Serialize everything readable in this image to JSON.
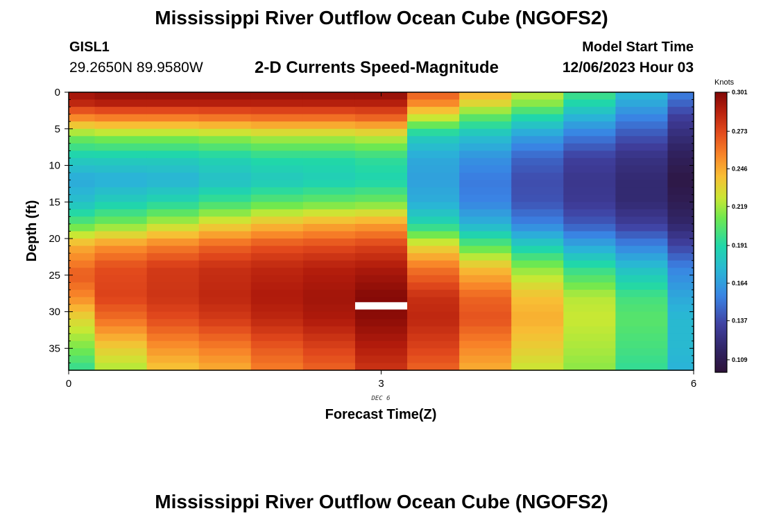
{
  "header": {
    "title": "Mississippi River Outflow Ocean Cube (NGOFS2)",
    "station_id": "GISL1",
    "station_coords": "29.2650N  89.9580W",
    "subtitle": "2-D Currents Speed-Magnitude",
    "model_start_label": "Model Start Time",
    "model_start_value": "12/06/2023 Hour 03"
  },
  "footer": {
    "title": "Mississippi River Outflow Ocean Cube (NGOFS2)"
  },
  "chart_data": {
    "type": "heatmap",
    "xlabel": "Forecast Time(Z)",
    "ylabel": "Depth (ft)",
    "x_date_label": "DEC 6",
    "xlim": [
      0,
      6
    ],
    "ylim": [
      0,
      38
    ],
    "y_inverted": true,
    "x_ticks": [
      0,
      3,
      6
    ],
    "y_ticks": [
      0,
      5,
      10,
      15,
      20,
      25,
      30,
      35
    ],
    "colorbar": {
      "unit": "Knots",
      "range": [
        0.1,
        0.301
      ],
      "tick_values": [
        0.301,
        0.273,
        0.246,
        0.219,
        0.191,
        0.164,
        0.137,
        0.109
      ],
      "tick_labels": [
        "0.301",
        "0.273",
        "0.246",
        "0.219",
        "0.191",
        "0.164",
        "0.137",
        "0.109"
      ]
    },
    "columns": [
      {
        "x0": 0.0,
        "x1": 0.25,
        "profile": [
          [
            0,
            0.295
          ],
          [
            1.5,
            0.285
          ],
          [
            3.5,
            0.255
          ],
          [
            6,
            0.212
          ],
          [
            9,
            0.185
          ],
          [
            12,
            0.168
          ],
          [
            15,
            0.178
          ],
          [
            18,
            0.205
          ],
          [
            21,
            0.245
          ],
          [
            25,
            0.268
          ],
          [
            28,
            0.255
          ],
          [
            31,
            0.232
          ],
          [
            35,
            0.212
          ],
          [
            38,
            0.195
          ]
        ]
      },
      {
        "x0": 0.25,
        "x1": 0.75,
        "profile": [
          [
            0,
            0.298
          ],
          [
            1.5,
            0.288
          ],
          [
            3.5,
            0.258
          ],
          [
            6,
            0.215
          ],
          [
            9,
            0.185
          ],
          [
            12,
            0.17
          ],
          [
            15,
            0.185
          ],
          [
            18,
            0.212
          ],
          [
            21,
            0.252
          ],
          [
            24,
            0.272
          ],
          [
            28,
            0.275
          ],
          [
            31,
            0.262
          ],
          [
            35,
            0.235
          ],
          [
            38,
            0.22
          ]
        ]
      },
      {
        "x0": 0.75,
        "x1": 1.25,
        "profile": [
          [
            0,
            0.298
          ],
          [
            1.5,
            0.288
          ],
          [
            3.5,
            0.258
          ],
          [
            6,
            0.215
          ],
          [
            9,
            0.185
          ],
          [
            12,
            0.172
          ],
          [
            15,
            0.19
          ],
          [
            18,
            0.222
          ],
          [
            21,
            0.258
          ],
          [
            24,
            0.278
          ],
          [
            28,
            0.28
          ],
          [
            31,
            0.272
          ],
          [
            35,
            0.252
          ],
          [
            38,
            0.238
          ]
        ]
      },
      {
        "x0": 1.25,
        "x1": 1.75,
        "profile": [
          [
            0,
            0.298
          ],
          [
            1.5,
            0.288
          ],
          [
            3.5,
            0.26
          ],
          [
            6,
            0.218
          ],
          [
            9,
            0.188
          ],
          [
            12,
            0.178
          ],
          [
            15,
            0.198
          ],
          [
            18,
            0.232
          ],
          [
            21,
            0.265
          ],
          [
            24,
            0.282
          ],
          [
            28,
            0.285
          ],
          [
            31,
            0.278
          ],
          [
            35,
            0.258
          ],
          [
            38,
            0.245
          ]
        ]
      },
      {
        "x0": 1.75,
        "x1": 2.25,
        "profile": [
          [
            0,
            0.298
          ],
          [
            1.5,
            0.288
          ],
          [
            3.5,
            0.262
          ],
          [
            6,
            0.222
          ],
          [
            9,
            0.192
          ],
          [
            12,
            0.182
          ],
          [
            15,
            0.205
          ],
          [
            18,
            0.24
          ],
          [
            21,
            0.27
          ],
          [
            24,
            0.285
          ],
          [
            28,
            0.29
          ],
          [
            31,
            0.285
          ],
          [
            35,
            0.268
          ],
          [
            38,
            0.258
          ]
        ]
      },
      {
        "x0": 2.25,
        "x1": 2.75,
        "profile": [
          [
            0,
            0.298
          ],
          [
            1.5,
            0.288
          ],
          [
            3.5,
            0.262
          ],
          [
            6,
            0.222
          ],
          [
            9,
            0.192
          ],
          [
            12,
            0.185
          ],
          [
            15,
            0.208
          ],
          [
            18,
            0.245
          ],
          [
            21,
            0.272
          ],
          [
            24,
            0.288
          ],
          [
            28,
            0.293
          ],
          [
            31,
            0.29
          ],
          [
            35,
            0.275
          ],
          [
            38,
            0.265
          ]
        ]
      },
      {
        "x0": 2.75,
        "x1": 3.25,
        "profile": [
          [
            0,
            0.298
          ],
          [
            1.5,
            0.288
          ],
          [
            3.5,
            0.265
          ],
          [
            6,
            0.225
          ],
          [
            9,
            0.195
          ],
          [
            12,
            0.188
          ],
          [
            15,
            0.21
          ],
          [
            18,
            0.248
          ],
          [
            21,
            0.275
          ],
          [
            24,
            0.29
          ],
          [
            28,
            0.3
          ],
          [
            31,
            0.298
          ],
          [
            35,
            0.288
          ],
          [
            38,
            0.28
          ]
        ]
      },
      {
        "x0": 3.25,
        "x1": 3.75,
        "profile": [
          [
            0,
            0.268
          ],
          [
            1.5,
            0.255
          ],
          [
            3.5,
            0.225
          ],
          [
            6,
            0.185
          ],
          [
            9,
            0.168
          ],
          [
            12,
            0.165
          ],
          [
            15,
            0.17
          ],
          [
            18,
            0.19
          ],
          [
            21,
            0.232
          ],
          [
            24,
            0.26
          ],
          [
            28,
            0.282
          ],
          [
            31,
            0.285
          ],
          [
            35,
            0.275
          ],
          [
            38,
            0.265
          ]
        ]
      },
      {
        "x0": 3.75,
        "x1": 4.25,
        "profile": [
          [
            0,
            0.245
          ],
          [
            1.5,
            0.232
          ],
          [
            3.5,
            0.205
          ],
          [
            6,
            0.178
          ],
          [
            9,
            0.16
          ],
          [
            12,
            0.152
          ],
          [
            15,
            0.155
          ],
          [
            18,
            0.172
          ],
          [
            21,
            0.205
          ],
          [
            24,
            0.24
          ],
          [
            28,
            0.265
          ],
          [
            31,
            0.27
          ],
          [
            35,
            0.255
          ],
          [
            38,
            0.245
          ]
        ]
      },
      {
        "x0": 4.25,
        "x1": 4.75,
        "profile": [
          [
            0,
            0.225
          ],
          [
            1.5,
            0.215
          ],
          [
            3.5,
            0.19
          ],
          [
            6,
            0.165
          ],
          [
            9,
            0.145
          ],
          [
            12,
            0.138
          ],
          [
            15,
            0.14
          ],
          [
            18,
            0.155
          ],
          [
            21,
            0.185
          ],
          [
            24,
            0.215
          ],
          [
            28,
            0.24
          ],
          [
            31,
            0.245
          ],
          [
            35,
            0.235
          ],
          [
            38,
            0.225
          ]
        ]
      },
      {
        "x0": 4.75,
        "x1": 5.25,
        "profile": [
          [
            0,
            0.2
          ],
          [
            1.5,
            0.19
          ],
          [
            3.5,
            0.172
          ],
          [
            6,
            0.152
          ],
          [
            9,
            0.133
          ],
          [
            12,
            0.128
          ],
          [
            15,
            0.13
          ],
          [
            18,
            0.142
          ],
          [
            21,
            0.168
          ],
          [
            24,
            0.195
          ],
          [
            28,
            0.222
          ],
          [
            31,
            0.225
          ],
          [
            35,
            0.22
          ],
          [
            38,
            0.215
          ]
        ]
      },
      {
        "x0": 5.25,
        "x1": 5.75,
        "profile": [
          [
            0,
            0.175
          ],
          [
            1.5,
            0.168
          ],
          [
            3.5,
            0.155
          ],
          [
            6,
            0.14
          ],
          [
            9,
            0.125
          ],
          [
            12,
            0.12
          ],
          [
            15,
            0.12
          ],
          [
            18,
            0.132
          ],
          [
            21,
            0.155
          ],
          [
            24,
            0.178
          ],
          [
            28,
            0.2
          ],
          [
            31,
            0.205
          ],
          [
            35,
            0.2
          ],
          [
            38,
            0.195
          ]
        ]
      },
      {
        "x0": 5.75,
        "x1": 6.0,
        "profile": [
          [
            0,
            0.155
          ],
          [
            1.5,
            0.145
          ],
          [
            3.5,
            0.132
          ],
          [
            6,
            0.122
          ],
          [
            9,
            0.112
          ],
          [
            12,
            0.105
          ],
          [
            15,
            0.11
          ],
          [
            18,
            0.118
          ],
          [
            21,
            0.135
          ],
          [
            24,
            0.155
          ],
          [
            28,
            0.168
          ],
          [
            31,
            0.175
          ],
          [
            35,
            0.175
          ],
          [
            38,
            0.172
          ]
        ]
      }
    ],
    "missing": [
      {
        "x0": 2.75,
        "x1": 3.25,
        "d0": 28.7,
        "d1": 29.7
      }
    ]
  }
}
